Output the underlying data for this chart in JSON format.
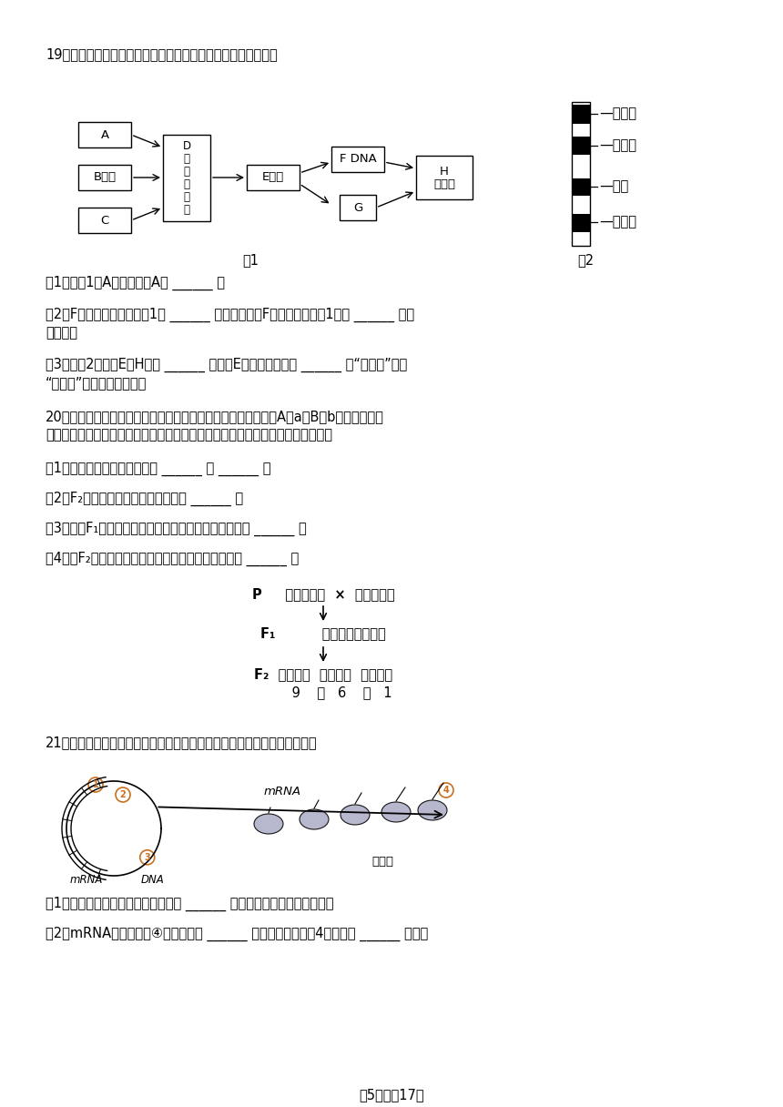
{
  "bg_color": "#ffffff",
  "title_fontsize": 10.5,
  "q19_header": "19．如图为某生物体内的部分物质与结构关系图，请据图回答：",
  "q20_header1": "20．南瓜的果实形状有球形、扁形和长形图种，受两对等位基因A、a和B、b控制，两对等",
  "q20_header2": "位基因独立遗传。现将两纯种球形果实的南瓜进行杂交，结果如图。请分析回答：",
  "q21_header": "21．如图表示原核细胞中遗传信息传递的部分过程。请据图回答下列问题。",
  "fig2_labels": [
    "朱红眼",
    "深红眼",
    "棒眼",
    "短硬毛"
  ],
  "fig1_caption": "图1",
  "fig2_caption": "图2",
  "q19_s1": "（1）若图1中A为糖类，则A是 ______ ；",
  "q19_s2a": "（2）F的基本组成单位是图1的 ______ （填字母），F的主要载体是图1中的 ______ （填",
  "q19_s2b": "字母）。",
  "q19_s3a": "（3）如图2所示，E在H上呈 ______ 排列，E中的遗传信息是 ______ （“随机的”或者",
  "q19_s3b": "“特定的”）碱基排列顺序。",
  "q20_s1": "（1）纯种球形南瓜的基因型是 ______ 和 ______ 。",
  "q20_s2": "（2）F₂球形南瓜中纯合子所占比例是 ______ 。",
  "q20_s3": "（3）若对F₁扁形南瓜进行测交，后代的表现型及比例是 ______ 。",
  "q20_s4": "（4）若F₂球形南瓜自由交配后代中长型果实的概率是 ______ 。",
  "cross_p": "P     球形果实甲  ×  球形果实乙",
  "cross_f1": "F₁          扁形果实（自交）",
  "cross_f2": "F₂  扁形果实  球形果实  长形果实",
  "cross_ratio": "         9    ：   6    ：   1",
  "q21_s1": "（1）图中涉及的遗传信息传递方向为 ______ （文字和箭头的形式表示）。",
  "q21_s2": "（2）mRNA是以图中的④为模板，在 ______ 的催化作用下，由4种游离的 ______ 依次连",
  "footer": "第5页，內17页"
}
